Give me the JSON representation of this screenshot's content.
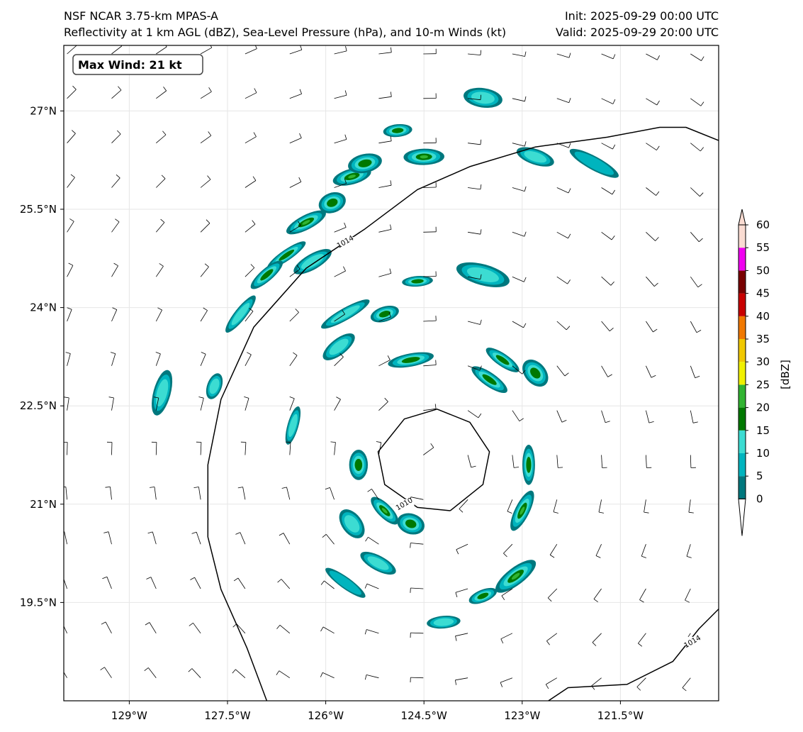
{
  "titles": {
    "left_line1": "NSF NCAR 3.75-km MPAS-A",
    "left_line2": "Reflectivity at 1 km AGL (dBZ), Sea-Level Pressure (hPa), and 10-m Winds (kt)",
    "right_line1": "Init: 2025-09-29 00:00 UTC",
    "right_line2": "Valid: 2025-09-29 20:00 UTC"
  },
  "info_box": {
    "text": "Max Wind: 21 kt"
  },
  "map": {
    "lon_range": [
      -130.0,
      -120.0
    ],
    "lat_range": [
      18.0,
      28.0
    ],
    "lat_ticks": [
      {
        "value": 27.0,
        "label": "27°N"
      },
      {
        "value": 25.5,
        "label": "25.5°N"
      },
      {
        "value": 24.0,
        "label": "24°N"
      },
      {
        "value": 22.5,
        "label": "22.5°N"
      },
      {
        "value": 21.0,
        "label": "21°N"
      },
      {
        "value": 19.5,
        "label": "19.5°N"
      }
    ],
    "lon_ticks": [
      {
        "value": -129.0,
        "label": "129°W"
      },
      {
        "value": -127.5,
        "label": "127.5°W"
      },
      {
        "value": -126.0,
        "label": "126°W"
      },
      {
        "value": -124.5,
        "label": "124.5°W"
      },
      {
        "value": -123.0,
        "label": "123°W"
      },
      {
        "value": -121.5,
        "label": "121.5°W"
      }
    ],
    "low_center": {
      "lon": -124.4,
      "lat": 21.6
    },
    "isobars": [
      {
        "label": "1014",
        "points": [
          [
            -126.9,
            18.0
          ],
          [
            -127.2,
            18.8
          ],
          [
            -127.6,
            19.7
          ],
          [
            -127.8,
            20.5
          ],
          [
            -127.8,
            21.6
          ],
          [
            -127.6,
            22.6
          ],
          [
            -127.1,
            23.7
          ],
          [
            -126.3,
            24.6
          ],
          [
            -125.4,
            25.2
          ],
          [
            -124.6,
            25.8
          ],
          [
            -123.8,
            26.15
          ],
          [
            -122.8,
            26.45
          ],
          [
            -121.7,
            26.6
          ],
          [
            -120.9,
            26.75
          ],
          [
            -120.5,
            26.75
          ],
          [
            -120.0,
            26.55
          ]
        ],
        "label_at": {
          "lon": -125.7,
          "lat": 25.0
        }
      },
      {
        "label": "1010",
        "points": [
          [
            -124.1,
            20.9
          ],
          [
            -123.6,
            21.3
          ],
          [
            -123.5,
            21.8
          ],
          [
            -123.8,
            22.25
          ],
          [
            -124.3,
            22.45
          ],
          [
            -124.8,
            22.3
          ],
          [
            -125.2,
            21.8
          ],
          [
            -125.1,
            21.3
          ],
          [
            -124.6,
            20.95
          ],
          [
            -124.1,
            20.9
          ]
        ],
        "label_at": {
          "lon": -124.8,
          "lat": 21.0
        }
      },
      {
        "label": "1014",
        "points": [
          [
            -122.6,
            18.0
          ],
          [
            -122.3,
            18.2
          ],
          [
            -121.4,
            18.25
          ],
          [
            -120.7,
            18.6
          ],
          [
            -120.3,
            19.1
          ],
          [
            -120.0,
            19.4
          ]
        ],
        "label_at": {
          "lon": -120.4,
          "lat": 18.9
        }
      }
    ],
    "reflectivity_cells": [
      {
        "lon": -124.5,
        "lat": 26.3,
        "dbz": 22
      },
      {
        "lon": -124.9,
        "lat": 26.7,
        "dbz": 18
      },
      {
        "lon": -125.6,
        "lat": 26.0,
        "dbz": 24
      },
      {
        "lon": -125.9,
        "lat": 25.6,
        "dbz": 18
      },
      {
        "lon": -126.3,
        "lat": 25.3,
        "dbz": 22
      },
      {
        "lon": -125.4,
        "lat": 26.2,
        "dbz": 15
      },
      {
        "lon": -126.6,
        "lat": 24.8,
        "dbz": 15
      },
      {
        "lon": -126.9,
        "lat": 24.5,
        "dbz": 18
      },
      {
        "lon": -127.3,
        "lat": 23.9,
        "dbz": 12
      },
      {
        "lon": -126.2,
        "lat": 24.7,
        "dbz": 12
      },
      {
        "lon": -124.6,
        "lat": 24.4,
        "dbz": 15
      },
      {
        "lon": -123.6,
        "lat": 24.5,
        "dbz": 12
      },
      {
        "lon": -125.1,
        "lat": 23.9,
        "dbz": 15
      },
      {
        "lon": -125.7,
        "lat": 23.9,
        "dbz": 12
      },
      {
        "lon": -125.8,
        "lat": 23.4,
        "dbz": 10
      },
      {
        "lon": -124.7,
        "lat": 23.2,
        "dbz": 15
      },
      {
        "lon": -122.8,
        "lat": 23.0,
        "dbz": 18
      },
      {
        "lon": -123.3,
        "lat": 23.2,
        "dbz": 15
      },
      {
        "lon": -123.5,
        "lat": 22.9,
        "dbz": 15
      },
      {
        "lon": -125.5,
        "lat": 21.6,
        "dbz": 18
      },
      {
        "lon": -125.1,
        "lat": 20.9,
        "dbz": 22
      },
      {
        "lon": -124.7,
        "lat": 20.7,
        "dbz": 18
      },
      {
        "lon": -125.6,
        "lat": 20.7,
        "dbz": 10
      },
      {
        "lon": -122.9,
        "lat": 21.6,
        "dbz": 18
      },
      {
        "lon": -123.0,
        "lat": 20.9,
        "dbz": 24
      },
      {
        "lon": -123.1,
        "lat": 19.9,
        "dbz": 22
      },
      {
        "lon": -123.6,
        "lat": 19.6,
        "dbz": 15
      },
      {
        "lon": -126.5,
        "lat": 22.2,
        "dbz": 12
      },
      {
        "lon": -127.7,
        "lat": 22.8,
        "dbz": 10
      },
      {
        "lon": -128.5,
        "lat": 22.7,
        "dbz": 10
      },
      {
        "lon": -121.9,
        "lat": 26.2,
        "dbz": 8
      },
      {
        "lon": -122.8,
        "lat": 26.3,
        "dbz": 12
      },
      {
        "lon": -123.6,
        "lat": 27.2,
        "dbz": 10
      },
      {
        "lon": -125.2,
        "lat": 20.1,
        "dbz": 10
      },
      {
        "lon": -124.2,
        "lat": 19.2,
        "dbz": 10
      },
      {
        "lon": -125.7,
        "lat": 19.8,
        "dbz": 8
      }
    ]
  },
  "colorbar": {
    "label": "[dBZ]",
    "ticks": [
      "0",
      "5",
      "10",
      "15",
      "20",
      "25",
      "30",
      "35",
      "40",
      "45",
      "50",
      "55",
      "60"
    ],
    "colors": [
      "#00787e",
      "#00b4be",
      "#3cdcd2",
      "#007800",
      "#32b432",
      "#f0f000",
      "#f0c800",
      "#f07800",
      "#c80000",
      "#780000",
      "#f000f0",
      "#fadcd2"
    ]
  }
}
